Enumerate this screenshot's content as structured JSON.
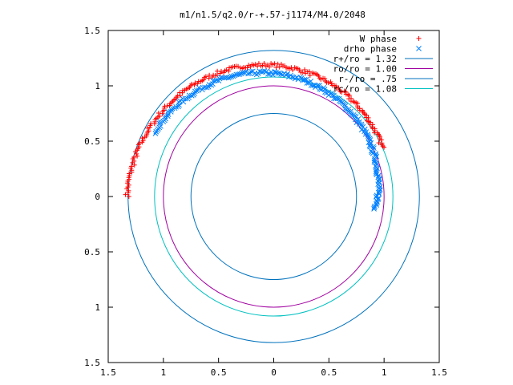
{
  "chart_data": {
    "type": "scatter",
    "title": "m1/n1.5/q2.0/r-+.57-j1174/M4.0/2048",
    "xlim": [
      -1.5,
      1.5
    ],
    "ylim": [
      -1.5,
      1.5
    ],
    "x_ticks": [
      "1.5",
      "1",
      "0.5",
      "0",
      "0.5",
      "1",
      "1.5"
    ],
    "y_ticks": [
      "1.5",
      "1",
      "0.5",
      "0",
      "0.5",
      "1",
      "1.5"
    ],
    "tick_values": [
      -1.5,
      -1,
      -0.5,
      0,
      0.5,
      1,
      1.5
    ],
    "legend_position": "top-right",
    "series": [
      {
        "name": "W phase",
        "kind": "points",
        "marker": "plus",
        "color": "#ff0000",
        "arc": {
          "r_start": 1.33,
          "r_end": 1.08,
          "theta_start_deg": 180,
          "theta_end_deg": 24
        }
      },
      {
        "name": "drho phase",
        "kind": "points",
        "marker": "x",
        "color": "#0080ff",
        "arc": {
          "r_start": 1.23,
          "r_end": 0.93,
          "theta_start_deg": 152,
          "theta_end_deg": -7
        }
      },
      {
        "name": "r+/ro = 1.32",
        "kind": "circle",
        "radius": 1.32,
        "color": "#0072bd"
      },
      {
        "name": "ro/ro = 1.00",
        "kind": "circle",
        "radius": 1.0,
        "color": "#a000a0"
      },
      {
        "name": "r-/ro = .75",
        "kind": "circle",
        "radius": 0.75,
        "color": "#0072bd"
      },
      {
        "name": "rc/ro = 1.08",
        "kind": "circle",
        "radius": 1.08,
        "color": "#00c0c0"
      }
    ]
  }
}
